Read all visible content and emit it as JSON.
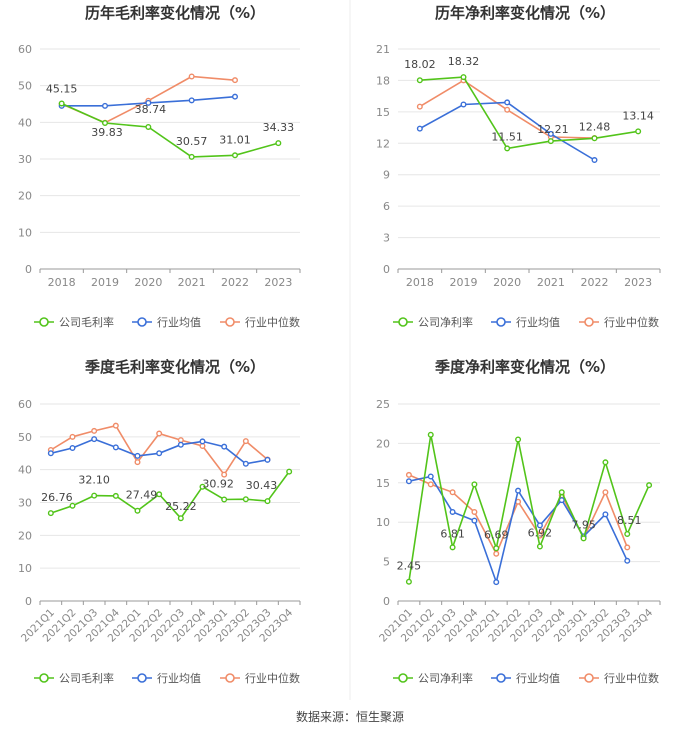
{
  "footer": "数据来源：恒生聚源",
  "colors": {
    "company": "#52c41a",
    "avg": "#3a6fd8",
    "median": "#f08c68",
    "grid": "#e6e6e6",
    "axis": "#999999",
    "text": "#888888"
  },
  "chart_data": [
    {
      "id": "annual-gross",
      "type": "line",
      "title": "历年毛利率变化情况（%）",
      "categories": [
        "2018",
        "2019",
        "2020",
        "2021",
        "2022",
        "2023"
      ],
      "ylim": [
        0,
        60
      ],
      "yticks": [
        0,
        10,
        20,
        30,
        40,
        50,
        60
      ],
      "legend": [
        "公司毛利率",
        "行业均值",
        "行业中位数"
      ],
      "series": [
        {
          "name": "公司毛利率",
          "values": [
            45.15,
            39.83,
            38.74,
            30.57,
            31.01,
            34.33
          ]
        },
        {
          "name": "行业均值",
          "values": [
            44.5,
            44.5,
            45.3,
            46.0,
            47.0,
            null
          ]
        },
        {
          "name": "行业中位数",
          "values": [
            45.0,
            39.9,
            45.9,
            52.5,
            51.5,
            null
          ]
        }
      ],
      "data_labels": [
        "45.15",
        "39.83",
        "38.74",
        "30.57",
        "31.01",
        "34.33"
      ]
    },
    {
      "id": "annual-net",
      "type": "line",
      "title": "历年净利率变化情况（%）",
      "categories": [
        "2018",
        "2019",
        "2020",
        "2021",
        "2022",
        "2023"
      ],
      "ylim": [
        0,
        21
      ],
      "yticks": [
        0,
        3,
        6,
        9,
        12,
        15,
        18,
        21
      ],
      "legend": [
        "公司净利率",
        "行业均值",
        "行业中位数"
      ],
      "series": [
        {
          "name": "公司净利率",
          "values": [
            18.02,
            18.32,
            11.51,
            12.21,
            12.48,
            13.14
          ]
        },
        {
          "name": "行业均值",
          "values": [
            13.4,
            15.7,
            15.9,
            12.9,
            10.4,
            null
          ]
        },
        {
          "name": "行业中位数",
          "values": [
            15.5,
            18.0,
            15.2,
            12.6,
            12.5,
            null
          ]
        }
      ],
      "data_labels": [
        "18.02",
        "18.32",
        "11.51",
        "12.21",
        "12.48",
        "13.14"
      ]
    },
    {
      "id": "quarterly-gross",
      "type": "line",
      "title": "季度毛利率变化情况（%）",
      "categories": [
        "2021Q1",
        "2021Q2",
        "2021Q3",
        "2021Q4",
        "2022Q1",
        "2022Q2",
        "2022Q3",
        "2022Q4",
        "2023Q1",
        "2023Q2",
        "2023Q3",
        "2023Q4"
      ],
      "ylim": [
        0,
        60
      ],
      "yticks": [
        0,
        10,
        20,
        30,
        40,
        50,
        60
      ],
      "legend": [
        "公司毛利率",
        "行业均值",
        "行业中位数"
      ],
      "series": [
        {
          "name": "公司毛利率",
          "values": [
            26.76,
            29.0,
            32.1,
            32.0,
            27.49,
            32.5,
            25.22,
            34.8,
            30.92,
            31.0,
            30.43,
            39.4
          ]
        },
        {
          "name": "行业均值",
          "values": [
            45.0,
            46.6,
            49.3,
            46.8,
            44.2,
            45.0,
            47.6,
            48.6,
            47.0,
            41.8,
            43.0,
            null
          ]
        },
        {
          "name": "行业中位数",
          "values": [
            46.0,
            50.0,
            51.8,
            53.4,
            42.3,
            51.0,
            49.0,
            47.2,
            38.5,
            48.7,
            43.1,
            null
          ]
        }
      ],
      "data_labels": [
        "26.76",
        "",
        "32.10",
        "",
        "27.49",
        "",
        "25.22",
        "",
        "30.92",
        "",
        "30.43",
        ""
      ]
    },
    {
      "id": "quarterly-net",
      "type": "line",
      "title": "季度净利率变化情况（%）",
      "categories": [
        "2021Q1",
        "2021Q2",
        "2021Q3",
        "2021Q4",
        "2022Q1",
        "2022Q2",
        "2022Q3",
        "2022Q4",
        "2023Q1",
        "2023Q2",
        "2023Q3",
        "2023Q4"
      ],
      "ylim": [
        0,
        25
      ],
      "yticks": [
        0,
        5,
        10,
        15,
        20,
        25
      ],
      "legend": [
        "公司净利率",
        "行业均值",
        "行业中位数"
      ],
      "series": [
        {
          "name": "公司净利率",
          "values": [
            2.45,
            21.1,
            6.81,
            14.8,
            6.69,
            20.5,
            6.92,
            13.8,
            7.95,
            17.6,
            8.51,
            14.7
          ]
        },
        {
          "name": "行业均值",
          "values": [
            15.2,
            15.8,
            11.3,
            10.2,
            2.4,
            14.0,
            9.6,
            12.8,
            8.2,
            11.0,
            5.1,
            null
          ]
        },
        {
          "name": "行业中位数",
          "values": [
            16.0,
            14.8,
            13.8,
            11.3,
            6.0,
            12.6,
            8.3,
            13.4,
            8.0,
            13.8,
            6.8,
            null
          ]
        }
      ],
      "data_labels": [
        "2.45",
        "",
        "6.81",
        "",
        "6.69",
        "",
        "6.92",
        "",
        "7.95",
        "",
        "8.51",
        ""
      ]
    }
  ]
}
